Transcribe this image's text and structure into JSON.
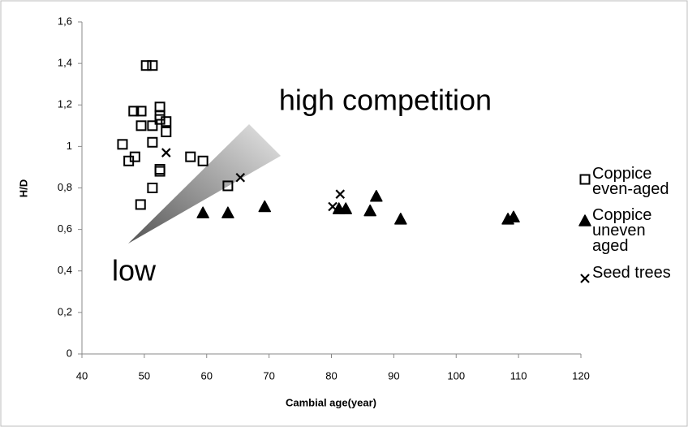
{
  "chart_data": {
    "type": "scatter",
    "x_label": "Cambial age(year)",
    "y_label": "H/D",
    "annotations": [
      "high competition",
      "low"
    ],
    "xlim": [
      40,
      120
    ],
    "xticks": [
      40,
      50,
      60,
      70,
      80,
      90,
      100,
      110,
      120
    ],
    "ylim": [
      0,
      1.6
    ],
    "yticks": [
      0,
      {
        "value": 0.2,
        "label": "0,2"
      },
      {
        "value": 0.4,
        "label": "0,4"
      },
      {
        "value": 0.6,
        "label": "0,6"
      },
      {
        "value": 0.8,
        "label": "0,8"
      },
      1,
      {
        "value": 1.2,
        "label": "1,2"
      },
      {
        "value": 1.4,
        "label": "1,4"
      },
      {
        "value": 1.6,
        "label": "1,6"
      }
    ],
    "grid": false,
    "legend": "right",
    "series": [
      {
        "name": "Coppice even-aged",
        "color": "#000000",
        "marker": "square",
        "x": [
          46.5,
          47.5,
          48.5,
          48.3,
          49.5,
          50.3,
          51.3,
          49.5,
          51.3,
          52.5,
          52.5,
          52.5,
          53.5,
          53.5,
          51.3,
          52.5,
          52.5,
          51.3,
          49.4,
          57.4,
          59.4,
          63.4
        ],
        "y": [
          1.01,
          0.93,
          0.95,
          1.17,
          1.17,
          1.39,
          1.39,
          1.1,
          1.1,
          1.19,
          1.15,
          1.13,
          1.12,
          1.07,
          1.02,
          0.89,
          0.88,
          0.8,
          0.72,
          0.95,
          0.93,
          0.81
        ]
      },
      {
        "name": "Coppice uneven aged",
        "color": "#000000",
        "marker": "triangle",
        "x": [
          59.4,
          63.4,
          69.3,
          81.2,
          82.3,
          86.2,
          87.2,
          91.1,
          108.3,
          109.2
        ],
        "y": [
          0.68,
          0.68,
          0.71,
          0.7,
          0.7,
          0.69,
          0.76,
          0.65,
          0.65,
          0.66
        ]
      },
      {
        "name": "Seed trees",
        "color": "#000000",
        "marker": "x",
        "x": [
          53.5,
          65.4,
          80.2,
          81.4
        ],
        "y": [
          0.97,
          0.85,
          0.71,
          0.77
        ]
      }
    ]
  }
}
